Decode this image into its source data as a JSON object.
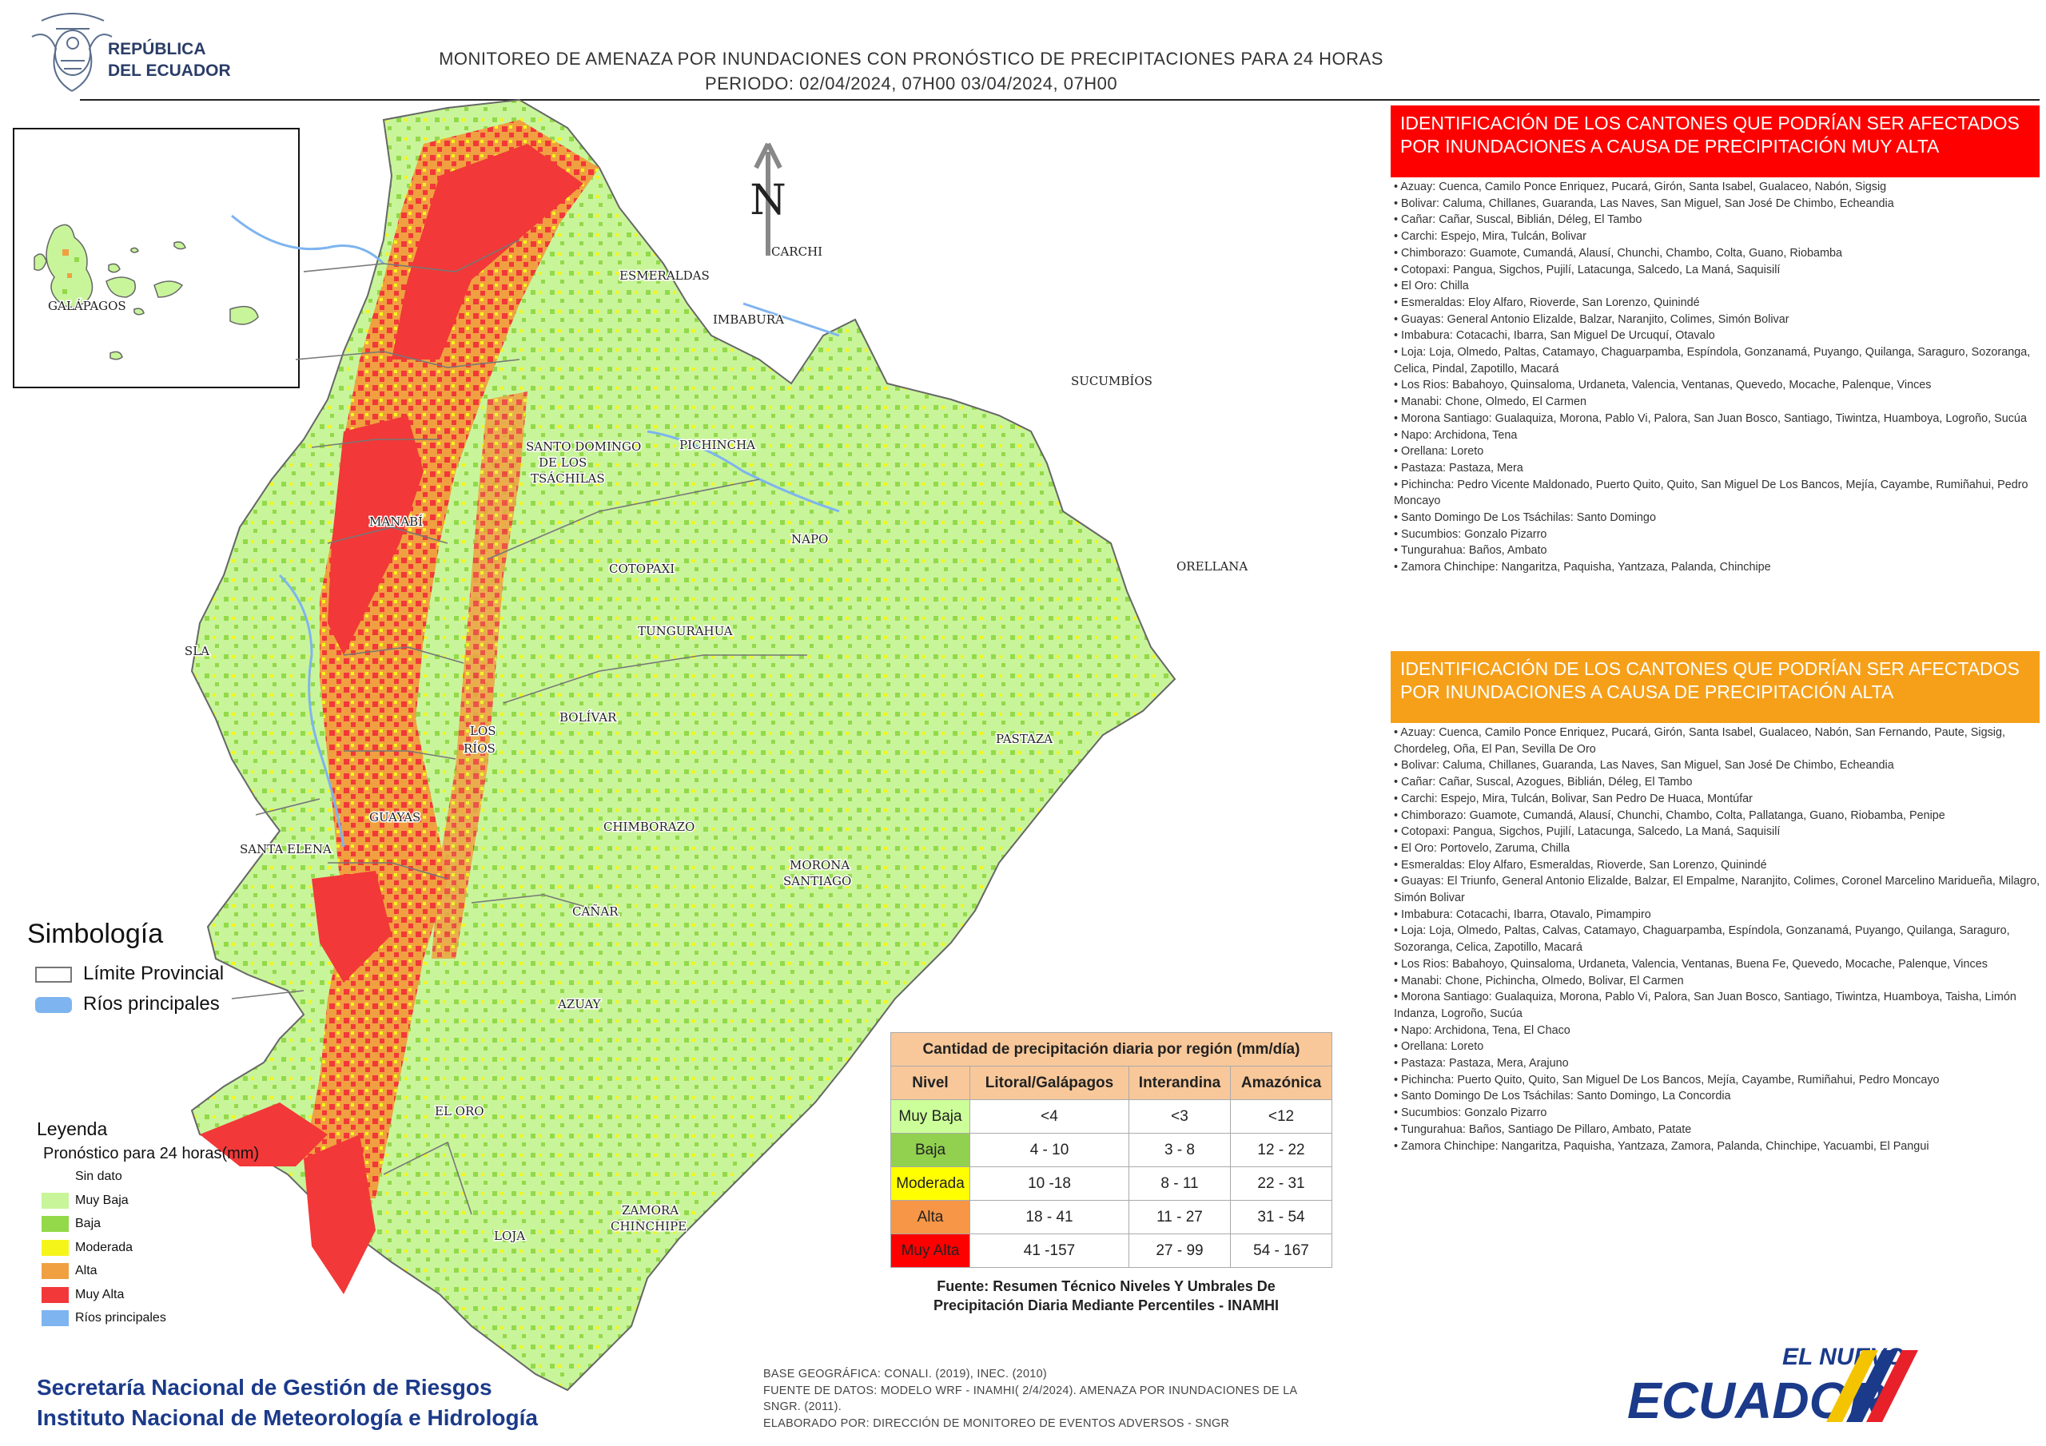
{
  "header": {
    "logo_lines": [
      "REPÚBLICA",
      "DEL ECUADOR"
    ],
    "title": "MONITOREO DE AMENAZA POR INUNDACIONES  CON PRONÓSTICO DE  PRECIPITACIONES PARA 24 HORAS",
    "period": "PERIODO: 02/04/2024, 07H00 03/04/2024, 07H00"
  },
  "map": {
    "north_label": "N",
    "inset_label": "GALÁPAGOS",
    "province_labels": [
      "ESMERALDAS",
      "CARCHI",
      "IMBABURA",
      "SUCUMBÍOS",
      "SANTO DOMINGO",
      "DE LOS",
      "TSÁCHILAS",
      "PICHINCHA",
      "MANABÍ",
      "NAPO",
      "COTOPAXI",
      "ORELLANA",
      "ISLA",
      "TUNGURAHUA",
      "BOLÍVAR",
      "LOS",
      "RÍOS",
      "PASTAZA",
      "GUAYAS",
      "CHIMBORAZO",
      "SANTA ELENA",
      "MORONA",
      "SANTIAGO",
      "CAÑAR",
      "AZUAY",
      "EL ORO",
      "ZAMORA",
      "CHINCHIPE",
      "LOJA"
    ],
    "colors": {
      "sin_dato": "#ffffff",
      "muy_baja": "#c8f59a",
      "baja": "#93d94a",
      "moderada": "#f5f51a",
      "alta": "#f0a040",
      "muy_alta": "#f23838",
      "rios": "#7eb4ef",
      "boundary": "#666666"
    }
  },
  "panel_muy_alta": {
    "title": "IDENTIFICACIÓN DE LOS CANTONES QUE PODRÍAN SER AFECTADOS POR INUNDACIONES  A CAUSA DE PRECIPITACIÓN MUY ALTA",
    "items": [
      "• Azuay: Cuenca, Camilo Ponce Enriquez, Pucará, Girón, Santa Isabel, Gualaceo, Nabón, Sigsig",
      "• Bolivar: Caluma, Chillanes, Guaranda, Las Naves, San Miguel, San José De Chimbo, Echeandia",
      "• Cañar: Cañar, Suscal, Biblián, Déleg, El Tambo",
      "• Carchi: Espejo, Mira, Tulcán, Bolivar",
      "• Chimborazo: Guamote, Cumandá, Alausí, Chunchi, Chambo, Colta, Guano, Riobamba",
      "• Cotopaxi: Pangua, Sigchos, Pujilí, Latacunga, Salcedo, La Maná, Saquisilí",
      "• El Oro: Chilla",
      "• Esmeraldas: Eloy Alfaro, Rioverde, San Lorenzo, Quinindé",
      "• Guayas: General Antonio Elizalde, Balzar, Naranjito, Colimes, Simón Bolivar",
      "• Imbabura: Cotacachi, Ibarra, San Miguel De Urcuquí, Otavalo",
      "• Loja: Loja, Olmedo, Paltas, Catamayo, Chaguarpamba, Espíndola, Gonzanamá, Puyango, Quilanga, Saraguro, Sozoranga, Celica, Pindal, Zapotillo, Macará",
      "• Los Rios: Babahoyo, Quinsaloma, Urdaneta, Valencia, Ventanas, Quevedo, Mocache, Palenque, Vinces",
      "• Manabi: Chone, Olmedo, El Carmen",
      "• Morona Santiago: Gualaquiza, Morona, Pablo Vi, Palora, San Juan Bosco, Santiago, Tiwintza, Huamboya, Logroño, Sucúa",
      "• Napo: Archidona, Tena",
      "• Orellana: Loreto",
      "• Pastaza: Pastaza, Mera",
      "• Pichincha: Pedro Vicente Maldonado, Puerto Quito, Quito, San Miguel De Los Bancos, Mejía, Cayambe, Rumiñahui, Pedro Moncayo",
      "• Santo Domingo De Los Tsáchilas: Santo Domingo",
      "• Sucumbios: Gonzalo Pizarro",
      "• Tungurahua: Baños, Ambato",
      "• Zamora Chinchipe: Nangaritza, Paquisha, Yantzaza, Palanda, Chinchipe"
    ]
  },
  "panel_alta": {
    "title": "IDENTIFICACIÓN DE LOS CANTONES QUE  PODRÍAN SER AFECTADOS POR INUNDACIONES  A CAUSA DE PRECIPITACIÓN  ALTA",
    "items": [
      "• Azuay: Cuenca, Camilo Ponce Enriquez, Pucará, Girón, Santa Isabel, Gualaceo, Nabón, San Fernando, Paute, Sigsig, Chordeleg, Oña, El Pan, Sevilla De Oro",
      "• Bolivar: Caluma, Chillanes, Guaranda, Las Naves, San Miguel, San José De Chimbo, Echeandia",
      "• Cañar: Cañar, Suscal, Azogues, Biblián, Déleg, El Tambo",
      "• Carchi: Espejo, Mira, Tulcán, Bolivar, San Pedro De Huaca, Montúfar",
      "• Chimborazo: Guamote, Cumandá, Alausí, Chunchi, Chambo, Colta, Pallatanga, Guano, Riobamba, Penipe",
      "• Cotopaxi: Pangua, Sigchos, Pujilí, Latacunga, Salcedo, La Maná, Saquisilí",
      "• El Oro: Portovelo, Zaruma, Chilla",
      "• Esmeraldas: Eloy Alfaro, Esmeraldas, Rioverde, San Lorenzo, Quinindé",
      "• Guayas: El Triunfo, General Antonio Elizalde, Balzar, El Empalme, Naranjito, Colimes, Coronel Marcelino Maridueña, Milagro, Simón Bolivar",
      "• Imbabura: Cotacachi, Ibarra, Otavalo, Pimampiro",
      "• Loja: Loja, Olmedo, Paltas, Calvas, Catamayo, Chaguarpamba, Espíndola, Gonzanamá, Puyango, Quilanga, Saraguro, Sozoranga, Celica, Zapotillo, Macará",
      "• Los Rios: Babahoyo, Quinsaloma, Urdaneta, Valencia, Ventanas, Buena Fe, Quevedo, Mocache, Palenque, Vinces",
      "• Manabi: Chone, Pichincha, Olmedo, Bolivar, El Carmen",
      "• Morona Santiago: Gualaquiza, Morona, Pablo Vi, Palora, San Juan Bosco, Santiago, Tiwintza, Huamboya, Taisha, Limón Indanza, Logroño, Sucúa",
      "• Napo: Archidona, Tena, El Chaco",
      "• Orellana: Loreto",
      "• Pastaza: Pastaza, Mera, Arajuno",
      "• Pichincha: Puerto Quito, Quito, San Miguel De Los Bancos, Mejía, Cayambe, Rumiñahui, Pedro Moncayo",
      "• Santo Domingo De Los Tsáchilas: Santo Domingo, La Concordia",
      "• Sucumbios: Gonzalo Pizarro",
      "• Tungurahua: Baños, Santiago De Pillaro, Ambato, Patate",
      "• Zamora Chinchipe: Nangaritza, Paquisha, Yantzaza, Zamora, Palanda, Chinchipe, Yacuambi, El Pangui"
    ]
  },
  "simbologia": {
    "title": "Simbología",
    "items": [
      {
        "label": "Límite Provincial",
        "color": "#ffffff"
      },
      {
        "label": "Ríos principales",
        "color": "#7eb4ef"
      }
    ]
  },
  "leyenda": {
    "title": "Leyenda",
    "subtitle": "Pronóstico para 24 horas(mm)",
    "items": [
      {
        "label": "Sin dato",
        "color": "#ffffff"
      },
      {
        "label": "Muy Baja",
        "color": "#c8f59a"
      },
      {
        "label": "Baja",
        "color": "#93d94a"
      },
      {
        "label": "Moderada",
        "color": "#f5f51a"
      },
      {
        "label": "Alta",
        "color": "#f0a040"
      },
      {
        "label": "Muy Alta",
        "color": "#f23838"
      },
      {
        "label": "Ríos principales",
        "color": "#7eb4ef"
      }
    ]
  },
  "table": {
    "title": "Cantidad de precipitación diaria por región (mm/día)",
    "headers": [
      "Nivel",
      "Litoral/Galápagos",
      "Interandina",
      "Amazónica"
    ],
    "rows": [
      {
        "nivel": "Muy Baja",
        "color": "#ccff99",
        "values": [
          "<4",
          "<3",
          "<12"
        ]
      },
      {
        "nivel": "Baja",
        "color": "#92d050",
        "values": [
          "4 - 10",
          "3 - 8",
          "12 - 22"
        ]
      },
      {
        "nivel": "Moderada",
        "color": "#ffff00",
        "values": [
          "10 -18",
          "8 - 11",
          "22 - 31"
        ]
      },
      {
        "nivel": "Alta",
        "color": "#f79646",
        "values": [
          "18 - 41",
          "11 - 27",
          "31 - 54"
        ]
      },
      {
        "nivel": "Muy Alta",
        "color": "#ff0000",
        "values": [
          "41 -157",
          "27 - 99",
          "54 - 167"
        ]
      }
    ],
    "note": "Fuente: Resumen Técnico Niveles Y Umbrales De Precipitación Diaria Mediante Percentiles - INAMHI"
  },
  "footer": {
    "org_lines": [
      "Secretaría Nacional de Gestión de Riesgos",
      "Instituto Nacional de Meteorología e Hidrología"
    ],
    "source_lines": [
      "BASE GEOGRÁFICA: CONALI. (2019), INEC. (2010)",
      "FUENTE DE DATOS: MODELO WRF - INAMHI( 2/4/2024).  AMENAZA POR INUNDACIONES DE LA SNGR. (2011).",
      "ELABORADO POR: DIRECCIÓN DE MONITOREO DE EVENTOS ADVERSOS - SNGR"
    ],
    "brand_top": "EL NUEVO",
    "brand_main": "ECUADOR"
  }
}
